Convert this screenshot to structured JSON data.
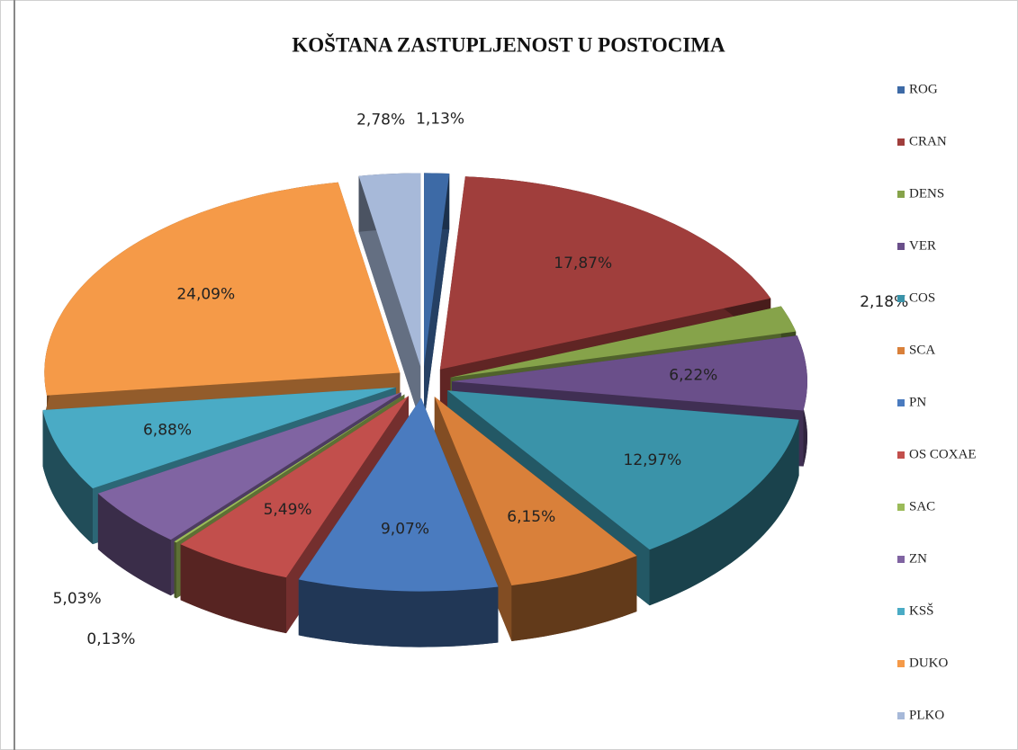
{
  "chart_data": {
    "type": "pie",
    "title": "KOŠTANA ZASTUPLJENOST U POSTOCIMA",
    "categories": [
      "ROG",
      "CRAN",
      "DENS",
      "VER",
      "COS",
      "SCA",
      "PN",
      "OS COXAE",
      "SAC",
      "ZN",
      "KSŠ",
      "DUKO",
      "PLKO"
    ],
    "values": [
      1.13,
      17.87,
      2.18,
      6.22,
      12.97,
      6.15,
      9.07,
      5.49,
      0.13,
      5.03,
      6.88,
      24.09,
      2.78
    ],
    "value_labels": [
      "1,13%",
      "17,87%",
      "2,18%",
      "6,22%",
      "12,97%",
      "6,15%",
      "9,07%",
      "5,49%",
      "0,13%",
      "5,03%",
      "6,88%",
      "24,09%",
      "2,78%"
    ],
    "colors": [
      "#3d6aa6",
      "#a03e3c",
      "#86a34a",
      "#6a4f8a",
      "#3a93a9",
      "#d9803a",
      "#4a7bbf",
      "#c24f4c",
      "#9bbb59",
      "#8064a2",
      "#4aabc5",
      "#f59a48",
      "#a7b9d9"
    ],
    "legend": "right"
  }
}
